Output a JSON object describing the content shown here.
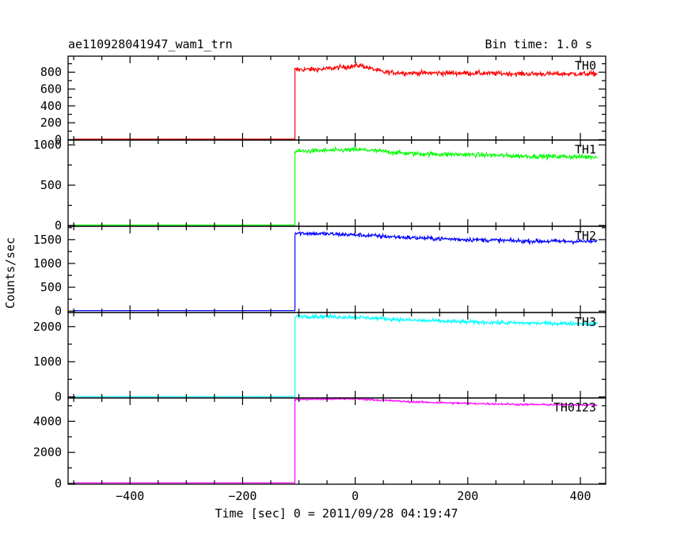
{
  "header": {
    "title": "ae110928041947_wam1_trn",
    "bin_time": "Bin time: 1.0 s"
  },
  "chart_data": {
    "type": "line",
    "title": "ae110928041947_wam1_trn",
    "xlabel": "Time [sec] 0 = 2011/09/28 04:19:47",
    "ylabel": "Counts/sec",
    "xlim": [
      -510,
      445
    ],
    "xticks": [
      -400,
      -200,
      0,
      200,
      400
    ],
    "xtick_labels": [
      "−400",
      "−200",
      "0",
      "200",
      "400"
    ],
    "onset_time": -107,
    "x_start": -500,
    "x_end": 430,
    "grid": false,
    "panels": [
      {
        "name": "TH0",
        "color": "#ff0000",
        "ylim": [
          -5,
          990
        ],
        "yticks": [
          0,
          200,
          400,
          600,
          800
        ],
        "ytick_labels": [
          "0",
          "200",
          "400",
          "600",
          "800"
        ],
        "pre_level": 5,
        "post_profile": [
          [
            -107,
            830
          ],
          [
            -60,
            835
          ],
          [
            10,
            880
          ],
          [
            20,
            860
          ],
          [
            50,
            800
          ],
          [
            100,
            790
          ],
          [
            200,
            790
          ],
          [
            300,
            780
          ],
          [
            430,
            780
          ]
        ],
        "noise": 28
      },
      {
        "name": "TH1",
        "color": "#00ff00",
        "ylim": [
          -10,
          1060
        ],
        "yticks": [
          0,
          500,
          1000
        ],
        "ytick_labels": [
          "0",
          "500",
          "1000"
        ],
        "pre_level": 5,
        "post_profile": [
          [
            -107,
            920
          ],
          [
            10,
            940
          ],
          [
            100,
            890
          ],
          [
            200,
            880
          ],
          [
            300,
            860
          ],
          [
            430,
            850
          ]
        ],
        "noise": 28
      },
      {
        "name": "TH2",
        "color": "#0000ff",
        "ylim": [
          -30,
          1780
        ],
        "yticks": [
          0,
          500,
          1000,
          1500
        ],
        "ytick_labels": [
          "0",
          "500",
          "1000",
          "1500"
        ],
        "pre_level": 10,
        "post_profile": [
          [
            -107,
            1640
          ],
          [
            0,
            1600
          ],
          [
            100,
            1540
          ],
          [
            200,
            1500
          ],
          [
            300,
            1470
          ],
          [
            430,
            1460
          ]
        ],
        "noise": 45
      },
      {
        "name": "TH3",
        "color": "#00ffff",
        "ylim": [
          -30,
          2400
        ],
        "yticks": [
          0,
          1000,
          2000
        ],
        "ytick_labels": [
          "0",
          "1000",
          "2000"
        ],
        "pre_level": 10,
        "post_profile": [
          [
            -107,
            2300
          ],
          [
            0,
            2270
          ],
          [
            100,
            2180
          ],
          [
            200,
            2130
          ],
          [
            300,
            2100
          ],
          [
            430,
            2080
          ]
        ],
        "noise": 55
      },
      {
        "name": "TH0123",
        "color": "#ff00ff",
        "ylim": [
          -50,
          5500
        ],
        "yticks": [
          0,
          2000,
          4000
        ],
        "ytick_labels": [
          "0",
          "2000",
          "4000"
        ],
        "pre_level": 30,
        "post_profile": [
          [
            -107,
            5400
          ],
          [
            0,
            5450
          ],
          [
            100,
            5250
          ],
          [
            200,
            5150
          ],
          [
            300,
            5080
          ],
          [
            430,
            5050
          ]
        ],
        "noise": 60
      }
    ]
  }
}
